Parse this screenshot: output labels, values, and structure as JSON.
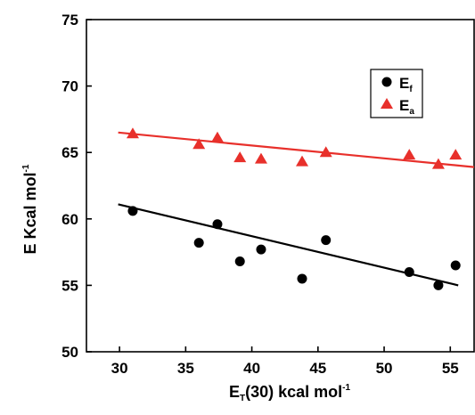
{
  "chart_data": {
    "type": "scatter",
    "xlabel": {
      "main": "E",
      "sub": "T",
      "rest": "(30) kcal mol",
      "sup": "-1"
    },
    "ylabel": {
      "main": "E Kcal mol",
      "sup": "-1"
    },
    "xlim": [
      27.5,
      56.8
    ],
    "ylim": [
      50,
      75
    ],
    "xticks": [
      30,
      35,
      40,
      45,
      50,
      55
    ],
    "yticks": [
      50,
      55,
      60,
      65,
      70,
      75
    ],
    "legend_position": "top-right",
    "series": [
      {
        "name": "Ef",
        "label_main": "E",
        "label_sub": "f",
        "marker": "circle",
        "color": "#000000",
        "x": [
          31.0,
          36.0,
          37.4,
          39.1,
          40.7,
          43.8,
          45.6,
          51.9,
          54.1,
          55.4
        ],
        "y": [
          60.6,
          58.2,
          59.6,
          56.8,
          57.7,
          55.5,
          58.4,
          56.0,
          55.0,
          56.5
        ],
        "fit": {
          "x": [
            29.9,
            55.6
          ],
          "y": [
            61.1,
            55.0
          ]
        }
      },
      {
        "name": "Ea",
        "label_main": "E",
        "label_sub": "a",
        "marker": "triangle",
        "color": "#e8302b",
        "x": [
          31.0,
          36.0,
          37.4,
          39.1,
          40.7,
          43.8,
          45.6,
          51.9,
          54.1,
          55.4
        ],
        "y": [
          66.4,
          65.6,
          66.1,
          64.6,
          64.5,
          64.3,
          65.0,
          64.8,
          64.1,
          64.8
        ],
        "fit": {
          "x": [
            29.9,
            56.8
          ],
          "y": [
            66.5,
            63.9
          ]
        }
      }
    ]
  }
}
